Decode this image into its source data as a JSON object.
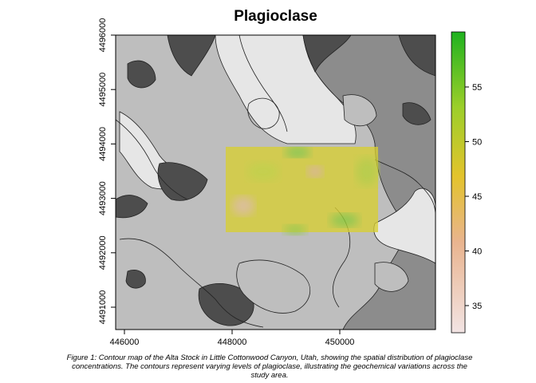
{
  "title": "Plagioclase",
  "caption": "Figure 1: Contour map of the Alta Stock in Little Cottonwood Canyon, Utah, showing the spatial distribution of plagioclase concentrations. The contours represent varying levels of plagioclase, illustrating the geochemical variations across the study area.",
  "x_axis": {
    "ticks": [
      {
        "value": 446000,
        "label": "446000"
      },
      {
        "value": 448000,
        "label": "448000"
      },
      {
        "value": 450000,
        "label": "450000"
      }
    ]
  },
  "y_axis": {
    "ticks": [
      {
        "value": 4491000,
        "label": "4491000"
      },
      {
        "value": 4492000,
        "label": "4492000"
      },
      {
        "value": 4493000,
        "label": "4493000"
      },
      {
        "value": 4494000,
        "label": "4494000"
      },
      {
        "value": 4495000,
        "label": "4495000"
      },
      {
        "value": 4496000,
        "label": "4496000"
      }
    ]
  },
  "colorbar": {
    "range": [
      32,
      60
    ],
    "ticks": [
      {
        "value": 35,
        "label": "35"
      },
      {
        "value": 40,
        "label": "40"
      },
      {
        "value": 45,
        "label": "45"
      },
      {
        "value": 50,
        "label": "50"
      },
      {
        "value": 55,
        "label": "55"
      }
    ],
    "colors": [
      "#f2e4e4",
      "#e9b48f",
      "#e3c32c",
      "#9ccf2a",
      "#1fb21f"
    ]
  },
  "map_colors": {
    "dark": "#4d4d4d",
    "medium": "#8c8c8c",
    "light": "#bebebe",
    "pale": "#e6e6e6"
  }
}
